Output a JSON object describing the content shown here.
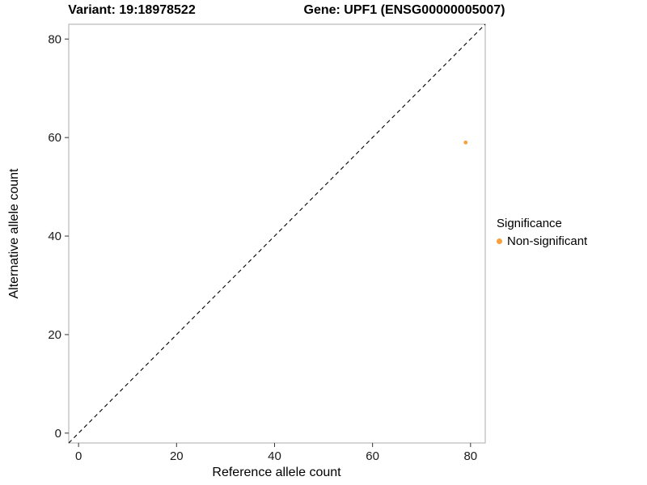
{
  "chart_data": {
    "type": "scatter",
    "title_left": "Variant: 19:18978522",
    "title_right": "Gene: UPF1 (ENSG00000005007)",
    "xlabel": "Reference allele count",
    "ylabel": "Alternative allele count",
    "xlim": [
      -2,
      83
    ],
    "ylim": [
      -2,
      83
    ],
    "xticks": [
      0,
      20,
      40,
      60,
      80
    ],
    "yticks": [
      0,
      20,
      40,
      60,
      80
    ],
    "grid": false,
    "identity_line": {
      "style": "dashed",
      "from": [
        -2,
        -2
      ],
      "to": [
        83,
        83
      ],
      "color": "#000000"
    },
    "series": [
      {
        "name": "Non-significant",
        "color": "#F9A03C",
        "points": [
          [
            79,
            59
          ]
        ]
      }
    ],
    "legend": {
      "title": "Significance",
      "position": "right",
      "items": [
        {
          "label": "Non-significant",
          "color": "#F9A03C"
        }
      ]
    },
    "colors": {
      "panel_border": "#ABABAB",
      "tick": "#333333",
      "tick_label": "#1a1a1a",
      "background": "#FFFFFF"
    }
  }
}
